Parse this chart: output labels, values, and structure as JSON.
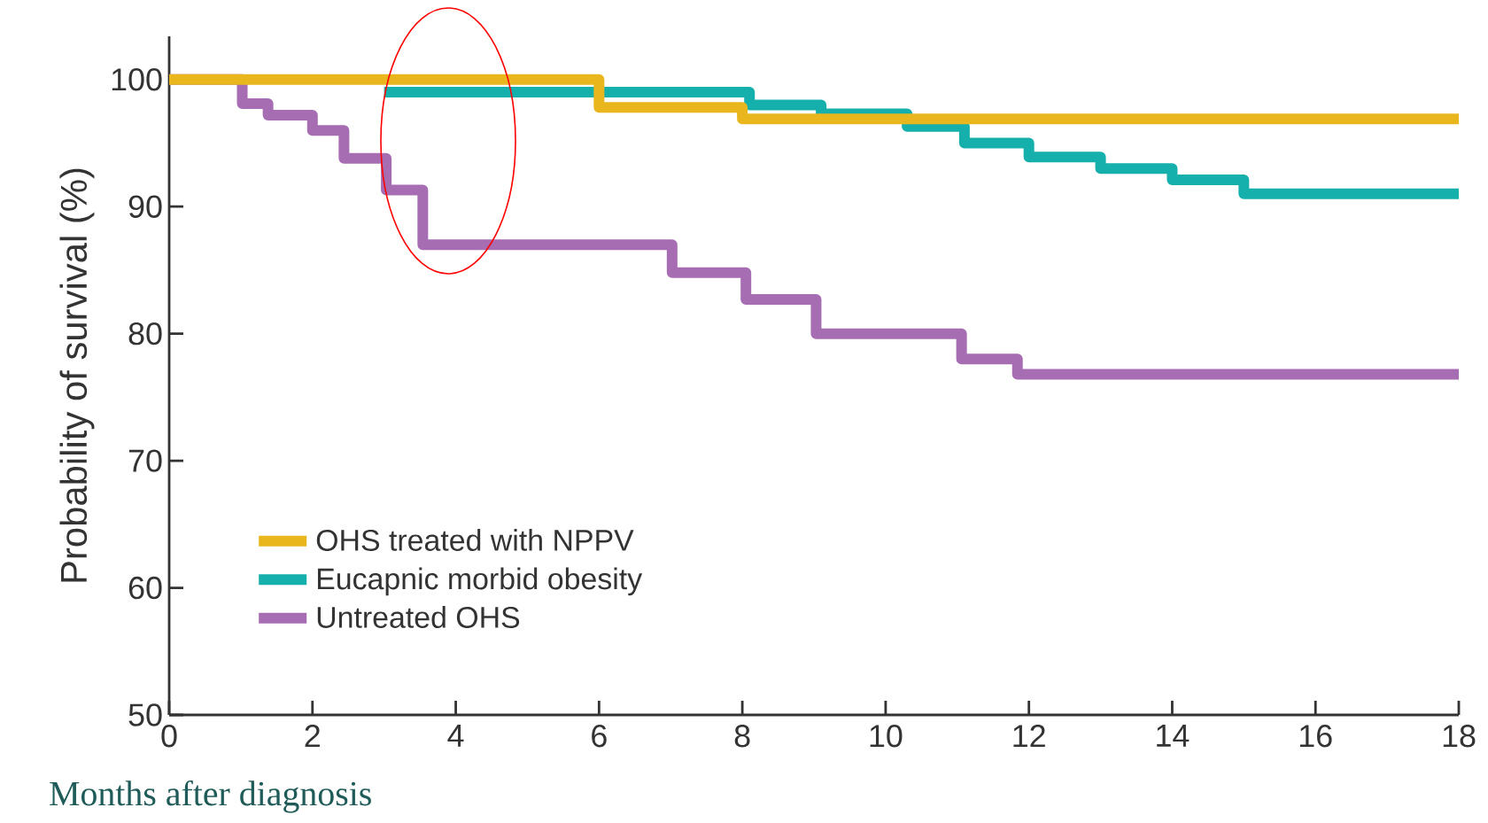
{
  "chart_data": {
    "type": "step",
    "xlabel": "Months after diagnosis",
    "ylabel": "Probability of survival (%)",
    "xlim": [
      0,
      18
    ],
    "ylim": [
      50,
      103.4
    ],
    "xticks": [
      0,
      2,
      4,
      6,
      8,
      10,
      12,
      14,
      16,
      18
    ],
    "yticks": [
      50,
      60,
      70,
      80,
      90,
      100
    ],
    "legend": "bottom left",
    "marker": "none",
    "line_style": "solid",
    "series": [
      {
        "name": "OHS treated with NPPV",
        "color": "#e9b61e",
        "x": [
          0,
          6,
          8,
          18
        ],
        "values": [
          100,
          97.8,
          96.9,
          96.9
        ]
      },
      {
        "name": "Eucapnic morbid obesity",
        "color": "#16b0ac",
        "x": [
          3,
          8.1,
          9.1,
          10.3,
          11.1,
          12,
          13,
          14,
          15,
          18
        ],
        "values": [
          99,
          98,
          97.3,
          96.3,
          95,
          93.9,
          93,
          92.1,
          91,
          91
        ]
      },
      {
        "name": "Untreated OHS",
        "color": "#a76db3",
        "x": [
          0,
          1.02,
          1.38,
          2,
          2.44,
          3.03,
          3.54,
          7.02,
          8.05,
          9.03,
          11.06,
          11.84,
          18
        ],
        "values": [
          100,
          98.1,
          97.2,
          96,
          93.8,
          91.3,
          87,
          84.8,
          82.7,
          80,
          78,
          76.8,
          76.8
        ]
      }
    ]
  }
}
